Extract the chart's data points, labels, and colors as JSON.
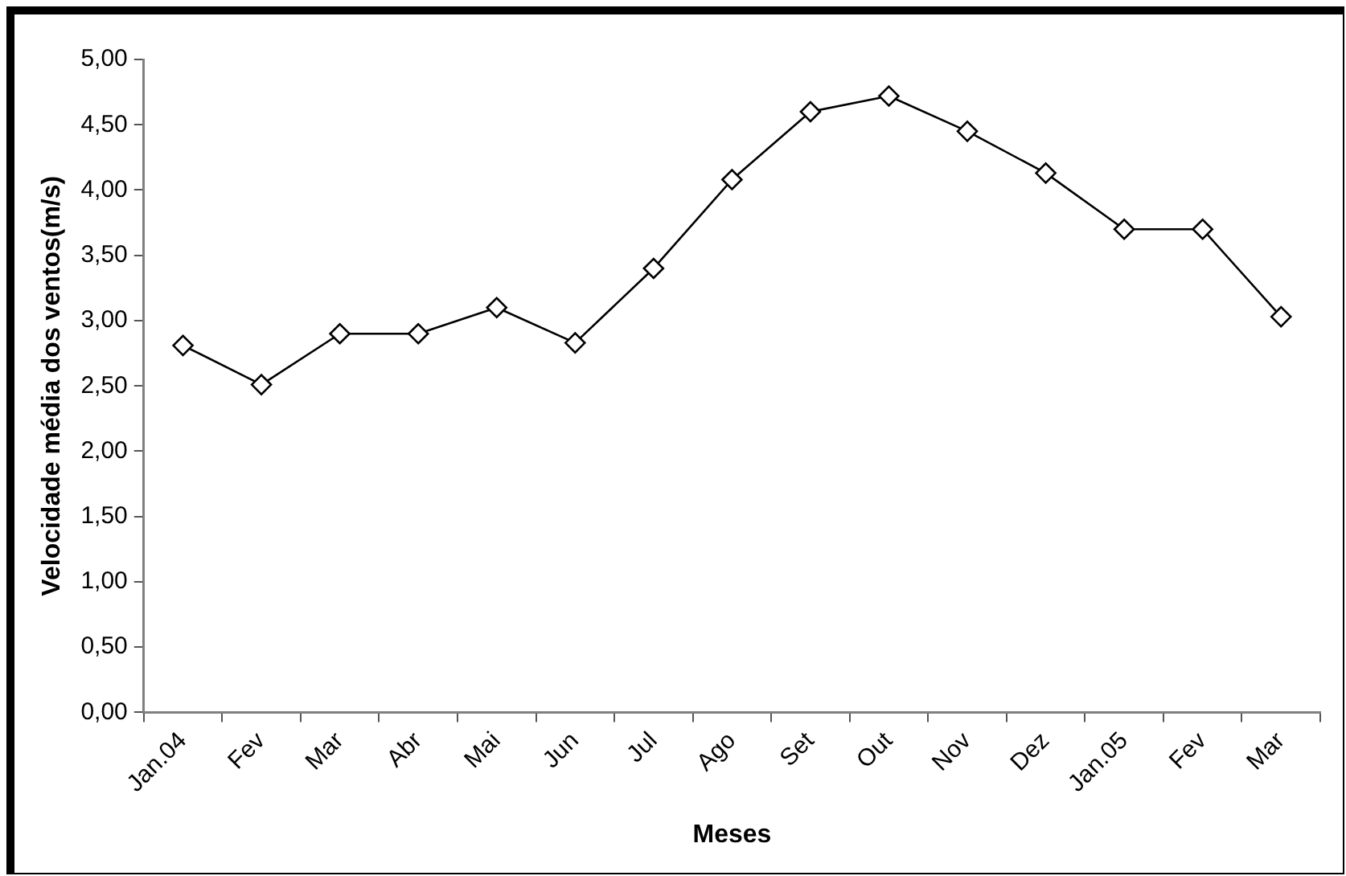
{
  "chart_data": {
    "type": "line",
    "xlabel": "Meses",
    "ylabel": "Velocidade média dos ventos(m/s)",
    "categories": [
      "Jan.04",
      "Fev",
      "Mar",
      "Abr",
      "Mai",
      "Jun",
      "Jul",
      "Ago",
      "Set",
      "Out",
      "Nov",
      "Dez",
      "Jan.05",
      "Fev",
      "Mar"
    ],
    "series": [
      {
        "color": "#000000",
        "values": [
          2.81,
          2.51,
          2.9,
          2.9,
          3.1,
          2.83,
          3.4,
          4.08,
          4.6,
          4.72,
          4.45,
          4.13,
          3.7,
          3.7,
          3.03
        ]
      }
    ],
    "ylim": [
      0,
      5
    ],
    "yticks": [
      {
        "value": 0,
        "label": "0,00"
      },
      {
        "value": 0.5,
        "label": "0,50"
      },
      {
        "value": 1,
        "label": "1,00"
      },
      {
        "value": 1.5,
        "label": "1,50"
      },
      {
        "value": 2,
        "label": "2,00"
      },
      {
        "value": 2.5,
        "label": "2,50"
      },
      {
        "value": 3,
        "label": "3,00"
      },
      {
        "value": 3.5,
        "label": "3,50"
      },
      {
        "value": 4,
        "label": "4,00"
      },
      {
        "value": 4.5,
        "label": "4,50"
      },
      {
        "value": 5,
        "label": "5,00"
      }
    ],
    "grid": false,
    "legend": false,
    "marker": "diamond",
    "line_style": "solid"
  }
}
